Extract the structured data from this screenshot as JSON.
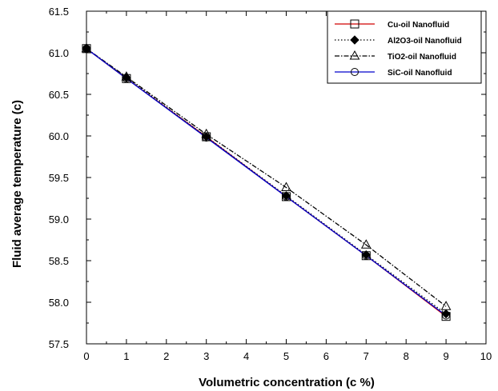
{
  "chart_data": {
    "type": "line",
    "title": "",
    "xlabel": "Volumetric concentration (c %)",
    "ylabel": "Fluid average temperature (c)",
    "xlim": [
      0,
      10
    ],
    "ylim": [
      57.5,
      61.5
    ],
    "xticks": [
      "0",
      "1",
      "2",
      "3",
      "4",
      "5",
      "6",
      "7",
      "8",
      "9",
      "10"
    ],
    "yticks": [
      "57.5",
      "58.0",
      "58.5",
      "59.0",
      "59.5",
      "60.0",
      "60.5",
      "61.0",
      "61.5"
    ],
    "grid": false,
    "legend_position": "top-right",
    "x": [
      0,
      1,
      3,
      5,
      7,
      9
    ],
    "series": [
      {
        "name": "Cu-oil Nanofluid",
        "values": [
          61.05,
          60.69,
          59.99,
          59.27,
          58.56,
          57.83
        ],
        "color": "#d00000",
        "dash": "solid",
        "marker": "square"
      },
      {
        "name": "Al2O3-oil Nanofluid",
        "values": [
          61.05,
          60.7,
          59.99,
          59.28,
          58.57,
          57.86
        ],
        "color": "#000000",
        "dash": "dotted",
        "marker": "diamond"
      },
      {
        "name": "TiO2-oil Nanofluid",
        "values": [
          61.05,
          60.71,
          60.02,
          59.38,
          58.69,
          57.95
        ],
        "color": "#000000",
        "dash": "dashdot",
        "marker": "triangle"
      },
      {
        "name": "SiC-oil Nanofluid",
        "values": [
          61.05,
          60.69,
          59.98,
          59.27,
          58.56,
          57.84
        ],
        "color": "#0000cc",
        "dash": "solid",
        "marker": "circle"
      }
    ]
  }
}
